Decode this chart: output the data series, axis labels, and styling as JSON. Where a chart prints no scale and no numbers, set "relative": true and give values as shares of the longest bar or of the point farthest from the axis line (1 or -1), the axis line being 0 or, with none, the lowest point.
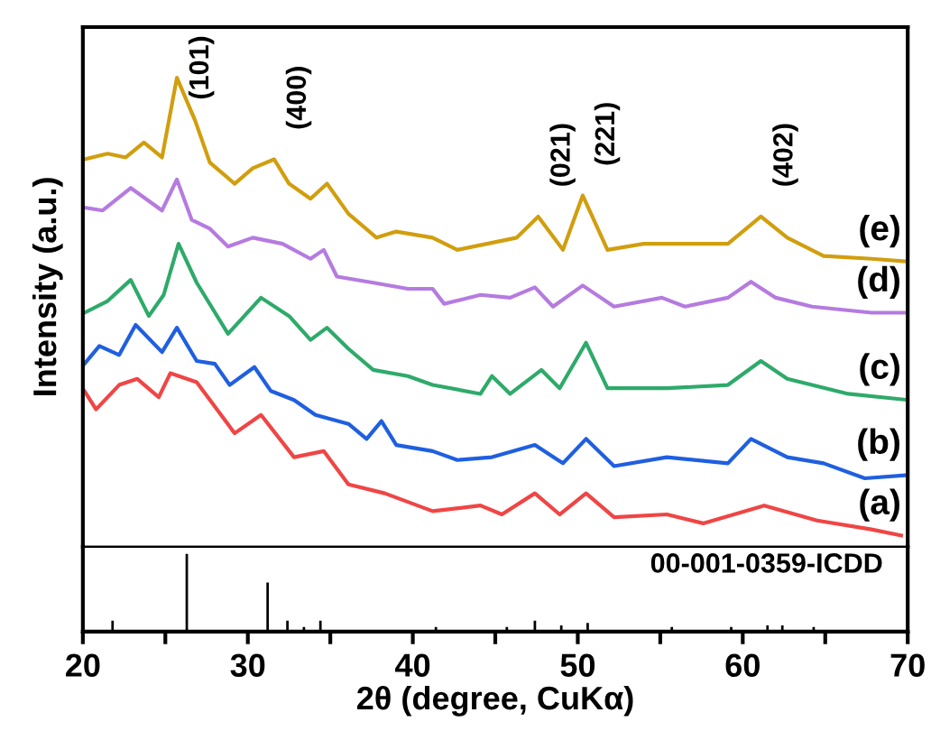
{
  "chart_data": [
    {
      "type": "line",
      "ylabel": "Intensity (a.u.)",
      "relative": true,
      "xlim": [
        20,
        70
      ],
      "tick_labels": false,
      "legend": false,
      "series": [
        {
          "name": "(a)",
          "color": "#f04545",
          "x": [
            20.1,
            20.8,
            22.2,
            23.3,
            24.6,
            25.3,
            26.9,
            29.2,
            30.8,
            32.8,
            34.6,
            36.1,
            38.3,
            41.2,
            44.1,
            45.4,
            47.4,
            48.9,
            50.5,
            52.2,
            55.4,
            57.6,
            61.3,
            64.5,
            67.8,
            69.6
          ],
          "values": [
            0.332,
            0.293,
            0.345,
            0.358,
            0.319,
            0.37,
            0.351,
            0.242,
            0.281,
            0.191,
            0.204,
            0.133,
            0.114,
            0.076,
            0.088,
            0.069,
            0.114,
            0.069,
            0.114,
            0.063,
            0.069,
            0.05,
            0.088,
            0.056,
            0.037,
            0.024
          ]
        },
        {
          "name": "(b)",
          "color": "#1f5fe0",
          "x": [
            20.1,
            21.0,
            22.2,
            23.2,
            24.8,
            25.7,
            26.9,
            28.0,
            28.9,
            30.4,
            31.4,
            32.8,
            34.1,
            36.1,
            37.2,
            38.1,
            39.0,
            41.2,
            42.7,
            44.8,
            47.4,
            49.1,
            50.5,
            52.2,
            55.4,
            59.1,
            60.5,
            62.7,
            64.9,
            67.4,
            70
          ],
          "values": [
            0.39,
            0.428,
            0.409,
            0.473,
            0.415,
            0.467,
            0.396,
            0.39,
            0.345,
            0.383,
            0.332,
            0.313,
            0.281,
            0.262,
            0.23,
            0.268,
            0.217,
            0.204,
            0.185,
            0.191,
            0.217,
            0.178,
            0.23,
            0.172,
            0.191,
            0.178,
            0.23,
            0.191,
            0.178,
            0.146,
            0.153
          ]
        },
        {
          "name": "(c)",
          "color": "#2eaa6a",
          "x": [
            20.1,
            21.5,
            22.9,
            24.0,
            24.9,
            25.8,
            26.9,
            28.8,
            30.8,
            32.5,
            33.8,
            34.8,
            36.1,
            37.6,
            39.7,
            41.2,
            44.1,
            44.8,
            45.9,
            47.8,
            48.9,
            50.5,
            51.8,
            55.4,
            59.1,
            61.1,
            62.7,
            66.4,
            70
          ],
          "values": [
            0.499,
            0.524,
            0.569,
            0.492,
            0.537,
            0.646,
            0.563,
            0.454,
            0.531,
            0.492,
            0.441,
            0.467,
            0.422,
            0.377,
            0.364,
            0.345,
            0.326,
            0.364,
            0.326,
            0.377,
            0.338,
            0.435,
            0.338,
            0.338,
            0.345,
            0.396,
            0.358,
            0.326,
            0.313
          ]
        },
        {
          "name": "(d)",
          "color": "#b57be0",
          "x": [
            20.1,
            21.2,
            22.9,
            24.8,
            25.7,
            26.6,
            27.7,
            28.8,
            30.3,
            32.1,
            33.8,
            34.6,
            35.4,
            37.6,
            39.7,
            41.2,
            41.9,
            44.1,
            45.9,
            47.4,
            48.5,
            50.3,
            52.2,
            55.1,
            56.5,
            59.1,
            60.5,
            62.0,
            64.2,
            67.8,
            70
          ],
          "values": [
            0.723,
            0.717,
            0.765,
            0.717,
            0.783,
            0.697,
            0.678,
            0.64,
            0.659,
            0.646,
            0.614,
            0.633,
            0.576,
            0.563,
            0.55,
            0.55,
            0.518,
            0.537,
            0.531,
            0.553,
            0.512,
            0.557,
            0.512,
            0.531,
            0.512,
            0.531,
            0.565,
            0.531,
            0.512,
            0.499,
            0.499
          ]
        },
        {
          "name": "(e)",
          "color": "#d19e0e",
          "x": [
            20.1,
            21.5,
            22.6,
            23.7,
            24.8,
            25.7,
            26.8,
            27.7,
            29.2,
            30.3,
            31.6,
            32.5,
            33.8,
            34.8,
            36.1,
            37.8,
            39.0,
            41.2,
            42.7,
            44.5,
            46.3,
            47.6,
            49.1,
            50.3,
            51.8,
            54.0,
            56.5,
            59.1,
            61.1,
            62.7,
            64.9,
            67.8,
            70
          ],
          "values": [
            0.826,
            0.838,
            0.83,
            0.862,
            0.83,
            1,
            0.909,
            0.819,
            0.774,
            0.807,
            0.826,
            0.774,
            0.742,
            0.774,
            0.71,
            0.659,
            0.672,
            0.659,
            0.633,
            0.646,
            0.659,
            0.704,
            0.633,
            0.749,
            0.633,
            0.646,
            0.646,
            0.646,
            0.704,
            0.659,
            0.62,
            0.614,
            0.608
          ]
        }
      ],
      "annotations": [
        {
          "text": "(101)",
          "x": 25.7,
          "y": 1
        },
        {
          "text": "(400)",
          "x": 31.6,
          "y": 0.826
        },
        {
          "text": "(021)",
          "x": 47.6,
          "y": 0.704
        },
        {
          "text": "(221)",
          "x": 50.3,
          "y": 0.749
        },
        {
          "text": "(402)",
          "x": 61.1,
          "y": 0.704
        }
      ]
    },
    {
      "type": "bar",
      "relative": true,
      "color": "#000000",
      "xlabel": "2θ (degree, CuKα)",
      "xlim": [
        20,
        70
      ],
      "xticks": [
        20,
        {
          "value": 25,
          "label": null
        },
        30,
        {
          "value": 35,
          "label": null
        },
        40,
        {
          "value": 45,
          "label": null
        },
        50,
        {
          "value": 55,
          "label": null
        },
        60,
        {
          "value": 65,
          "label": null
        },
        70
      ],
      "tick_labels": "x",
      "x": [
        21.8,
        26.3,
        31.2,
        32.4,
        33.4,
        34.4,
        41.4,
        45.7,
        47.4,
        49.0,
        50.6,
        55.7,
        59.3,
        61.5,
        62.4,
        64.3
      ],
      "values": [
        0.14,
        1,
        0.63,
        0.14,
        0.06,
        0.14,
        0.06,
        0.06,
        0.14,
        0.08,
        0.11,
        0.06,
        0.06,
        0.08,
        0.08,
        0.06
      ],
      "annotations": [
        "00-001-0359-ICDD"
      ]
    }
  ]
}
